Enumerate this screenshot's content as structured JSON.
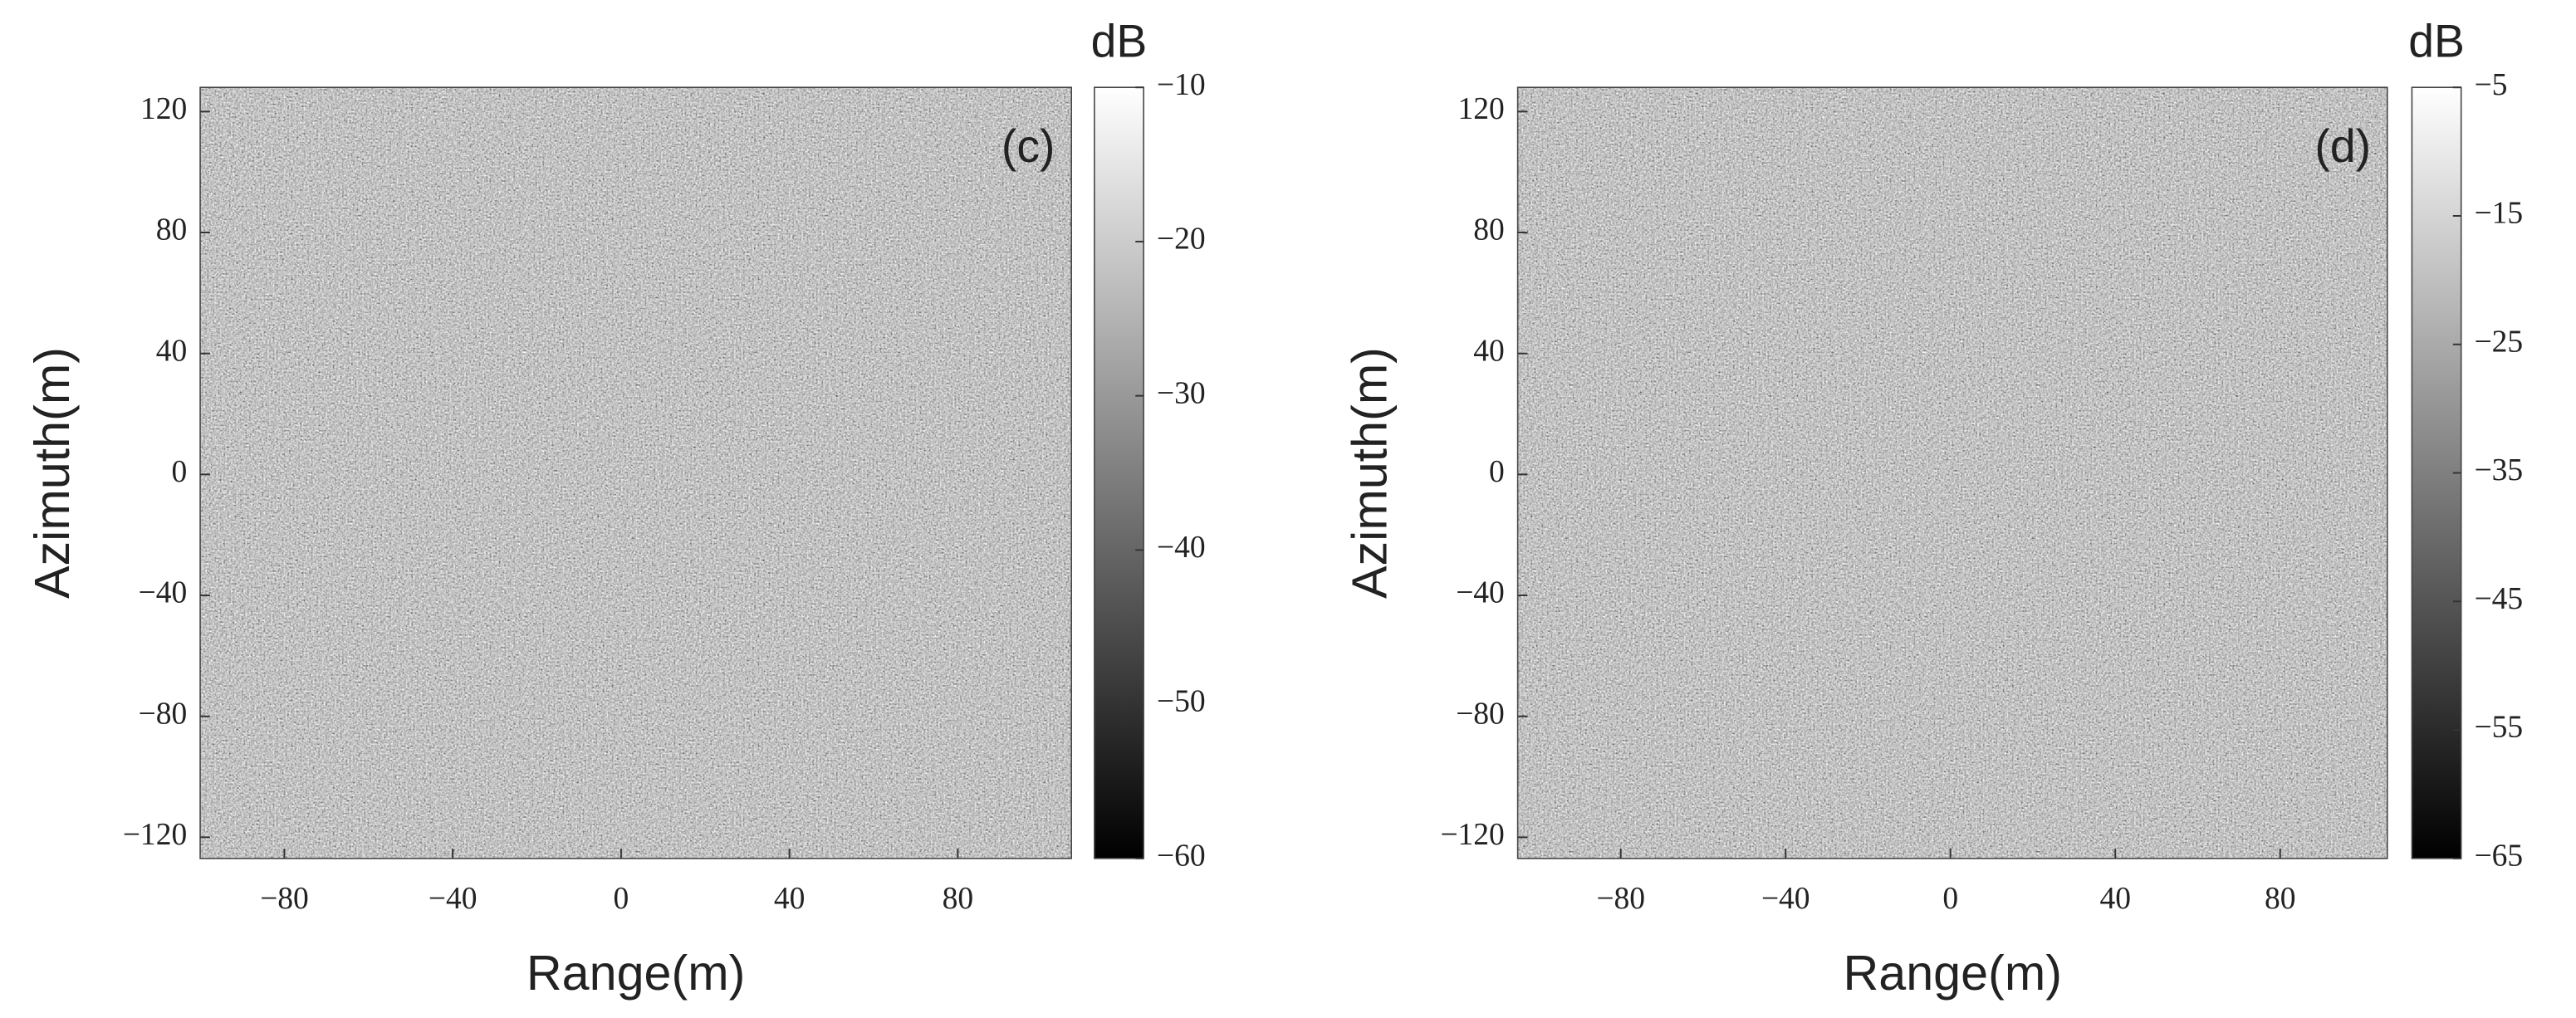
{
  "chart_data": [
    {
      "type": "heatmap",
      "label": "(c)",
      "xlabel": "Range(m)",
      "ylabel": "Azimuth(m)",
      "xlim": [
        -100,
        107
      ],
      "ylim": [
        -127,
        128
      ],
      "xticks": [
        {
          "value": -80,
          "label": "−80"
        },
        {
          "value": -40,
          "label": "−40"
        },
        0,
        40,
        80
      ],
      "yticks": [
        {
          "value": -120,
          "label": "−120"
        },
        {
          "value": -80,
          "label": "−80"
        },
        {
          "value": -40,
          "label": "−40"
        },
        0,
        40,
        80,
        120
      ],
      "colorbar_label": "dB",
      "clim": [
        -60,
        -10
      ],
      "cticks": [
        {
          "value": -10,
          "label": "−10"
        },
        {
          "value": -20,
          "label": "−20"
        },
        {
          "value": -30,
          "label": "−30"
        },
        {
          "value": -40,
          "label": "−40"
        },
        {
          "value": -50,
          "label": "−50"
        },
        {
          "value": -60,
          "label": "−60"
        }
      ],
      "colormap": [
        "#000000",
        "#ffffff"
      ]
    },
    {
      "type": "heatmap",
      "label": "(d)",
      "xlabel": "Range(m)",
      "ylabel": "Azimuth(m)",
      "xlim": [
        -105,
        106
      ],
      "ylim": [
        -127,
        128
      ],
      "xticks": [
        {
          "value": -80,
          "label": "−80"
        },
        {
          "value": -40,
          "label": "−40"
        },
        0,
        40,
        80
      ],
      "yticks": [
        {
          "value": -120,
          "label": "−120"
        },
        {
          "value": -80,
          "label": "−80"
        },
        {
          "value": -40,
          "label": "−40"
        },
        0,
        40,
        80,
        120
      ],
      "colorbar_label": "dB",
      "clim": [
        -65,
        -5
      ],
      "cticks": [
        {
          "value": -5,
          "label": "−5"
        },
        {
          "value": -15,
          "label": "−15"
        },
        {
          "value": -25,
          "label": "−25"
        },
        {
          "value": -35,
          "label": "−35"
        },
        {
          "value": -45,
          "label": "−45"
        },
        {
          "value": -55,
          "label": "−55"
        },
        {
          "value": -65,
          "label": "−65"
        }
      ],
      "colormap": [
        "#000000",
        "#ffffff"
      ]
    }
  ]
}
